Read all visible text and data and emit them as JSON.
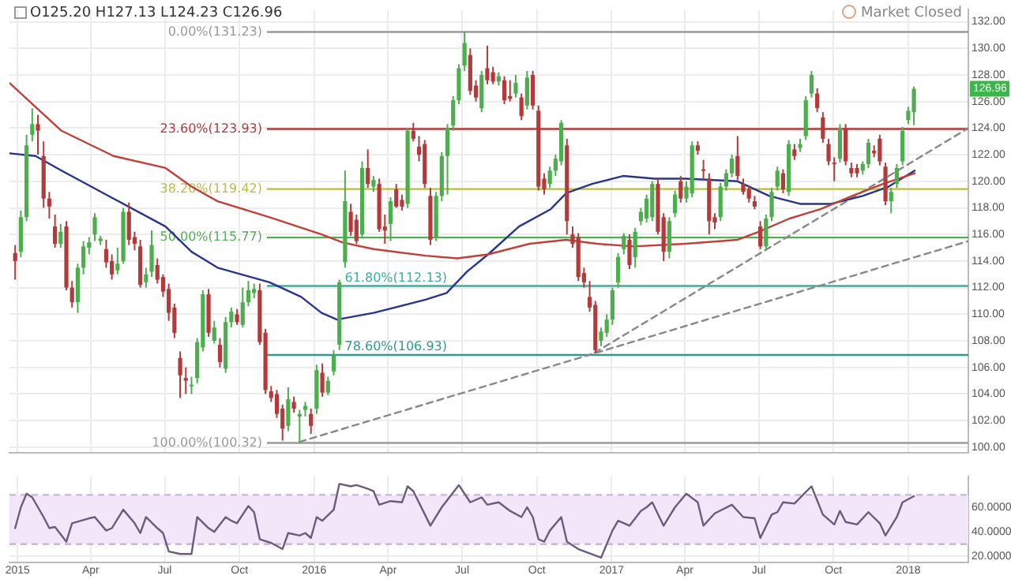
{
  "chart_data": [
    {
      "type": "candlestick",
      "annotations": [
        "O125.20 H127.13 L124.23 C126.96",
        "Market Closed",
        {
          "text": "126.96",
          "y": 126.96
        }
      ],
      "x": [
        "2014-12-29",
        "2015-01-05",
        "2015-01-12",
        "2015-01-19",
        "2015-01-26",
        "2015-02-02",
        "2015-02-09",
        "2015-02-16",
        "2015-02-23",
        "2015-03-02",
        "2015-03-09",
        "2015-03-16",
        "2015-03-23",
        "2015-03-30",
        "2015-04-06",
        "2015-04-13",
        "2015-04-20",
        "2015-04-27",
        "2015-05-04",
        "2015-05-11",
        "2015-05-18",
        "2015-05-25",
        "2015-06-01",
        "2015-06-08",
        "2015-06-15",
        "2015-06-22",
        "2015-06-29",
        "2015-07-06",
        "2015-07-13",
        "2015-07-20",
        "2015-07-27",
        "2015-08-03",
        "2015-08-10",
        "2015-08-17",
        "2015-08-24",
        "2015-08-31",
        "2015-09-07",
        "2015-09-14",
        "2015-09-21",
        "2015-09-28",
        "2015-10-05",
        "2015-10-12",
        "2015-10-19",
        "2015-10-26",
        "2015-11-02",
        "2015-11-09",
        "2015-11-16",
        "2015-11-23",
        "2015-11-30",
        "2015-12-07",
        "2015-12-14",
        "2015-12-21",
        "2015-12-28",
        "2016-01-04",
        "2016-01-11",
        "2016-01-18",
        "2016-01-25",
        "2016-02-01",
        "2016-02-08",
        "2016-02-15",
        "2016-02-22",
        "2016-02-29",
        "2016-03-07",
        "2016-03-14",
        "2016-03-21",
        "2016-03-28",
        "2016-04-04",
        "2016-04-11",
        "2016-04-18",
        "2016-04-25",
        "2016-05-02",
        "2016-05-09",
        "2016-05-16",
        "2016-05-23",
        "2016-05-30",
        "2016-06-06",
        "2016-06-13",
        "2016-06-20",
        "2016-06-27",
        "2016-07-04",
        "2016-07-11",
        "2016-07-18",
        "2016-07-25",
        "2016-08-01",
        "2016-08-08",
        "2016-08-15",
        "2016-08-22",
        "2016-08-29",
        "2016-09-05",
        "2016-09-12",
        "2016-09-19",
        "2016-09-26",
        "2016-10-03",
        "2016-10-10",
        "2016-10-17",
        "2016-10-24",
        "2016-10-31",
        "2016-11-07",
        "2016-11-14",
        "2016-11-21",
        "2016-11-28",
        "2016-12-05",
        "2016-12-12",
        "2016-12-19",
        "2016-12-26",
        "2017-01-02",
        "2017-01-09",
        "2017-01-16",
        "2017-01-23",
        "2017-01-30",
        "2017-02-06",
        "2017-02-13",
        "2017-02-20",
        "2017-02-27",
        "2017-03-06",
        "2017-03-13",
        "2017-03-20",
        "2017-03-27",
        "2017-04-03",
        "2017-04-10",
        "2017-04-17",
        "2017-04-24",
        "2017-05-01",
        "2017-05-08",
        "2017-05-15",
        "2017-05-22",
        "2017-05-29",
        "2017-06-05",
        "2017-06-12",
        "2017-06-19",
        "2017-06-26",
        "2017-07-03",
        "2017-07-10",
        "2017-07-17",
        "2017-07-24",
        "2017-07-31",
        "2017-08-07",
        "2017-08-14",
        "2017-08-21",
        "2017-08-28",
        "2017-09-04",
        "2017-09-11",
        "2017-09-18",
        "2017-09-25",
        "2017-10-02",
        "2017-10-09",
        "2017-10-16",
        "2017-10-23",
        "2017-10-30",
        "2017-11-06",
        "2017-11-13",
        "2017-11-20",
        "2017-11-27",
        "2017-12-04",
        "2017-12-11",
        "2017-12-18",
        "2017-12-25",
        "2018-01-01",
        "2018-01-08"
      ],
      "ohlc": [
        [
          114.6,
          115.2,
          112.6,
          114.0
        ],
        [
          114.7,
          117.8,
          114.3,
          117.3
        ],
        [
          117.3,
          123.5,
          117.0,
          122.7
        ],
        [
          123.5,
          125.5,
          123.0,
          124.3
        ],
        [
          124.3,
          125.0,
          122.0,
          123.8
        ],
        [
          121.9,
          123.0,
          118.0,
          118.7
        ],
        [
          118.7,
          119.2,
          117.2,
          118.1
        ],
        [
          116.6,
          117.5,
          115.0,
          115.3
        ],
        [
          115.3,
          116.8,
          115.0,
          116.2
        ],
        [
          116.6,
          117.0,
          111.8,
          112.0
        ],
        [
          112.0,
          112.5,
          110.5,
          110.9
        ],
        [
          110.9,
          113.8,
          110.1,
          113.5
        ],
        [
          113.5,
          115.5,
          113.0,
          115.1
        ],
        [
          115.0,
          115.8,
          114.5,
          115.4
        ],
        [
          116.0,
          117.6,
          115.5,
          117.3
        ],
        [
          115.5,
          115.9,
          115.2,
          115.7
        ],
        [
          114.9,
          115.6,
          113.5,
          113.9
        ],
        [
          114.0,
          114.5,
          112.6,
          113.0
        ],
        [
          113.3,
          115.0,
          113.0,
          113.8
        ],
        [
          114.0,
          118.0,
          113.8,
          117.7
        ],
        [
          117.7,
          118.4,
          115.2,
          115.6
        ],
        [
          115.8,
          116.2,
          114.8,
          115.3
        ],
        [
          115.1,
          115.6,
          112.0,
          112.2
        ],
        [
          112.4,
          113.5,
          112.0,
          113.0
        ],
        [
          113.2,
          116.3,
          112.8,
          115.2
        ],
        [
          113.7,
          114.2,
          112.3,
          112.6
        ],
        [
          112.8,
          113.0,
          111.3,
          111.7
        ],
        [
          111.9,
          112.3,
          109.5,
          110.1
        ],
        [
          110.5,
          110.8,
          108.2,
          108.6
        ],
        [
          106.7,
          107.2,
          103.7,
          105.4
        ],
        [
          105.2,
          106.0,
          104.0,
          105.0
        ],
        [
          104.6,
          105.3,
          104.0,
          104.7
        ],
        [
          105.2,
          108.2,
          104.8,
          107.9
        ],
        [
          107.5,
          111.8,
          107.2,
          111.5
        ],
        [
          111.5,
          111.9,
          108.3,
          108.6
        ],
        [
          108.0,
          109.5,
          107.8,
          109.0
        ],
        [
          107.7,
          108.2,
          106.0,
          106.4
        ],
        [
          105.9,
          109.8,
          105.6,
          109.4
        ],
        [
          109.4,
          110.5,
          109.0,
          110.2
        ],
        [
          110.0,
          110.4,
          109.2,
          109.4
        ],
        [
          109.2,
          112.0,
          109.0,
          110.9
        ],
        [
          110.9,
          112.5,
          110.6,
          111.8
        ],
        [
          111.6,
          112.3,
          111.2,
          111.9
        ],
        [
          111.8,
          112.3,
          107.7,
          107.9
        ],
        [
          108.6,
          108.9,
          104.0,
          104.3
        ],
        [
          104.2,
          104.6,
          103.4,
          103.7
        ],
        [
          104.0,
          104.3,
          102.2,
          102.5
        ],
        [
          102.9,
          103.2,
          100.5,
          101.4
        ],
        [
          101.6,
          104.5,
          101.2,
          103.6
        ],
        [
          103.4,
          103.8,
          102.6,
          102.9
        ],
        [
          102.3,
          102.8,
          100.32,
          102.5
        ],
        [
          102.8,
          103.4,
          102.3,
          103.1
        ],
        [
          102.5,
          102.9,
          101.0,
          101.6
        ],
        [
          102.9,
          106.2,
          102.5,
          105.8
        ],
        [
          105.6,
          106.3,
          103.8,
          104.1
        ],
        [
          104.1,
          105.3,
          103.9,
          105.0
        ],
        [
          105.7,
          107.3,
          105.4,
          106.9
        ],
        [
          107.7,
          112.6,
          107.3,
          112.4
        ],
        [
          113.9,
          120.8,
          113.5,
          118.5
        ],
        [
          117.7,
          118.3,
          115.9,
          116.2
        ],
        [
          117.1,
          117.5,
          115.3,
          115.5
        ],
        [
          116.0,
          121.5,
          115.7,
          121.0
        ],
        [
          121.0,
          122.4,
          119.5,
          119.8
        ],
        [
          119.6,
          120.4,
          119.2,
          120.1
        ],
        [
          119.8,
          120.2,
          116.2,
          116.4
        ],
        [
          116.6,
          117.5,
          115.3,
          116.3
        ],
        [
          116.8,
          118.8,
          115.5,
          118.5
        ],
        [
          119.4,
          119.8,
          118.0,
          118.1
        ],
        [
          118.6,
          119.0,
          117.8,
          118.1
        ],
        [
          118.3,
          124.0,
          118.0,
          123.8
        ],
        [
          123.8,
          124.4,
          123.0,
          123.2
        ],
        [
          122.6,
          123.4,
          121.5,
          122.0
        ],
        [
          122.8,
          123.1,
          119.5,
          119.8
        ],
        [
          118.9,
          119.5,
          115.2,
          115.6
        ],
        [
          115.8,
          119.2,
          115.5,
          118.9
        ],
        [
          118.9,
          122.2,
          118.5,
          121.9
        ],
        [
          121.9,
          124.3,
          119.0,
          124.0
        ],
        [
          124.2,
          126.4,
          123.8,
          126.1
        ],
        [
          126.1,
          128.8,
          125.8,
          128.5
        ],
        [
          128.7,
          131.23,
          128.3,
          130.4
        ],
        [
          129.5,
          130.0,
          126.5,
          126.8
        ],
        [
          127.2,
          127.6,
          126.0,
          126.3
        ],
        [
          125.5,
          128.3,
          125.2,
          128.0
        ],
        [
          128.5,
          130.2,
          127.3,
          127.6
        ],
        [
          128.2,
          128.6,
          127.3,
          127.5
        ],
        [
          127.5,
          128.2,
          127.2,
          127.9
        ],
        [
          127.6,
          127.9,
          125.8,
          126.1
        ],
        [
          126.4,
          127.6,
          126.0,
          126.2
        ],
        [
          126.6,
          128.0,
          126.3,
          127.4
        ],
        [
          126.3,
          126.6,
          124.6,
          124.9
        ],
        [
          125.7,
          128.3,
          125.4,
          127.8
        ],
        [
          128.0,
          128.3,
          125.4,
          125.7
        ],
        [
          125.3,
          125.7,
          119.3,
          119.6
        ],
        [
          120.2,
          120.6,
          119.0,
          119.4
        ],
        [
          119.8,
          121.1,
          119.5,
          120.8
        ],
        [
          120.8,
          122.0,
          120.4,
          121.7
        ],
        [
          121.5,
          124.6,
          121.2,
          124.4
        ],
        [
          122.7,
          123.2,
          116.0,
          117.0
        ],
        [
          116.0,
          116.6,
          115.0,
          115.3
        ],
        [
          115.8,
          116.1,
          112.5,
          112.8
        ],
        [
          113.1,
          113.5,
          112.0,
          112.4
        ],
        [
          111.3,
          112.5,
          110.2,
          110.5
        ],
        [
          110.7,
          111.0,
          107.1,
          107.3
        ],
        [
          108.0,
          109.0,
          107.6,
          108.7
        ],
        [
          108.6,
          110.0,
          108.3,
          109.6
        ],
        [
          109.6,
          112.0,
          109.2,
          111.8
        ],
        [
          112.4,
          114.6,
          112.0,
          114.3
        ],
        [
          114.9,
          116.1,
          114.5,
          115.9
        ],
        [
          115.6,
          116.0,
          113.4,
          113.7
        ],
        [
          114.3,
          116.5,
          113.5,
          116.2
        ],
        [
          117.0,
          118.0,
          116.7,
          117.7
        ],
        [
          117.2,
          119.0,
          116.9,
          118.7
        ],
        [
          117.3,
          120.0,
          117.0,
          119.8
        ],
        [
          119.8,
          120.2,
          116.0,
          116.2
        ],
        [
          117.3,
          117.6,
          114.0,
          114.7
        ],
        [
          114.7,
          117.3,
          114.2,
          117.0
        ],
        [
          117.6,
          119.3,
          117.3,
          119.0
        ],
        [
          120.0,
          120.4,
          118.4,
          118.7
        ],
        [
          118.7,
          120.0,
          118.4,
          119.6
        ],
        [
          119.1,
          123.0,
          118.8,
          122.7
        ],
        [
          122.7,
          123.0,
          122.0,
          122.3
        ],
        [
          120.9,
          121.6,
          120.1,
          120.8
        ],
        [
          120.2,
          120.6,
          116.0,
          117.0
        ],
        [
          117.3,
          117.6,
          116.4,
          116.9
        ],
        [
          117.3,
          119.9,
          117.0,
          119.6
        ],
        [
          119.6,
          120.9,
          119.3,
          120.6
        ],
        [
          120.6,
          122.0,
          120.3,
          121.7
        ],
        [
          121.9,
          123.4,
          120.1,
          120.4
        ],
        [
          119.8,
          120.2,
          119.0,
          119.2
        ],
        [
          119.4,
          119.7,
          118.4,
          118.7
        ],
        [
          118.5,
          118.9,
          117.9,
          118.1
        ],
        [
          116.6,
          117.0,
          114.9,
          115.1
        ],
        [
          115.1,
          117.5,
          114.8,
          117.2
        ],
        [
          117.3,
          119.5,
          117.0,
          119.2
        ],
        [
          119.6,
          121.1,
          119.3,
          120.8
        ],
        [
          120.6,
          120.9,
          119.1,
          119.4
        ],
        [
          119.2,
          123.1,
          118.9,
          122.8
        ],
        [
          122.4,
          122.8,
          121.6,
          121.9
        ],
        [
          122.5,
          123.2,
          122.2,
          122.8
        ],
        [
          123.4,
          126.4,
          123.1,
          126.1
        ],
        [
          126.6,
          128.3,
          126.3,
          128.0
        ],
        [
          126.6,
          127.0,
          125.2,
          125.5
        ],
        [
          124.8,
          125.2,
          122.9,
          123.2
        ],
        [
          122.8,
          123.2,
          121.2,
          121.5
        ],
        [
          121.4,
          121.8,
          120.0,
          121.3
        ],
        [
          121.7,
          124.3,
          121.4,
          124.0
        ],
        [
          124.0,
          124.3,
          121.2,
          121.5
        ],
        [
          121.0,
          121.4,
          120.3,
          120.6
        ],
        [
          121.0,
          121.3,
          120.3,
          120.6
        ],
        [
          120.8,
          121.5,
          120.5,
          121.3
        ],
        [
          121.3,
          123.2,
          121.0,
          122.9
        ],
        [
          122.3,
          122.7,
          121.8,
          122.1
        ],
        [
          123.2,
          123.5,
          121.2,
          121.5
        ],
        [
          121.1,
          121.4,
          118.2,
          118.5
        ],
        [
          118.5,
          119.5,
          117.6,
          119.2
        ],
        [
          119.8,
          121.3,
          119.5,
          121.0
        ],
        [
          121.5,
          124.1,
          121.2,
          123.8
        ],
        [
          124.6,
          125.6,
          124.3,
          125.3
        ],
        [
          125.2,
          127.13,
          124.23,
          126.96
        ]
      ],
      "series": [
        {
          "type": "line",
          "color": "#c0403a",
          "x": [
            "2014-12-22",
            "2015-02-24",
            "2015-04-29",
            "2015-07-02",
            "2015-08-03",
            "2015-09-04",
            "2015-11-07",
            "2016-01-10",
            "2016-02-05",
            "2016-03-14",
            "2016-05-17",
            "2016-06-25",
            "2016-08-02",
            "2016-09-22",
            "2016-11-06",
            "2016-12-14",
            "2017-01-28",
            "2017-04-02",
            "2017-06-05",
            "2017-07-01",
            "2017-08-08",
            "2017-09-15",
            "2017-10-24",
            "2017-12-01",
            "2018-01-09"
          ],
          "values": [
            127.4,
            123.8,
            121.9,
            121.0,
            119.6,
            118.5,
            117.3,
            116.0,
            115.4,
            114.9,
            114.4,
            114.2,
            114.5,
            115.3,
            115.6,
            115.3,
            115.1,
            115.3,
            115.6,
            116.2,
            117.2,
            117.9,
            118.9,
            119.8,
            120.6
          ]
        },
        {
          "type": "line",
          "color": "#28368a",
          "x": [
            "2014-12-22",
            "2015-01-23",
            "2015-02-24",
            "2015-04-29",
            "2015-07-02",
            "2015-08-03",
            "2015-09-04",
            "2015-11-07",
            "2015-12-16",
            "2016-01-10",
            "2016-01-29",
            "2016-03-14",
            "2016-05-17",
            "2016-06-12",
            "2016-07-07",
            "2016-08-02",
            "2016-09-09",
            "2016-10-18",
            "2016-11-06",
            "2016-12-08",
            "2017-01-15",
            "2017-02-23",
            "2017-04-02",
            "2017-06-05",
            "2017-07-14",
            "2017-08-21",
            "2017-09-28",
            "2017-11-06",
            "2017-12-08",
            "2018-01-09"
          ],
          "values": [
            122.1,
            121.9,
            120.8,
            118.7,
            116.6,
            114.7,
            113.5,
            112.4,
            111.3,
            110.1,
            109.6,
            110.1,
            111.1,
            111.6,
            113.2,
            114.5,
            116.6,
            117.9,
            119.1,
            119.8,
            120.4,
            120.2,
            120.2,
            120.0,
            118.9,
            118.3,
            118.3,
            118.9,
            119.6,
            120.8
          ]
        },
        {
          "type": "line",
          "color": "#888888",
          "line_style": "dashed",
          "x": [
            "2015-12-14",
            "2018-03-16"
          ],
          "values": [
            100.4,
            115.5
          ]
        },
        {
          "type": "line",
          "color": "#888888",
          "line_style": "dashed",
          "x": [
            "2016-12-11",
            "2018-03-16"
          ],
          "values": [
            107.1,
            124.0
          ]
        }
      ],
      "ref_lines": [
        {
          "axis": "y",
          "value": 131.23,
          "label": "0.00%(131.23)",
          "color": "#9a9a9a"
        },
        {
          "axis": "y",
          "value": 123.93,
          "label": "23.60%(123.93)",
          "color": "#b23b3b"
        },
        {
          "axis": "y",
          "value": 119.42,
          "label": "38.20%(119.42)",
          "color": "#bdbd45"
        },
        {
          "axis": "y",
          "value": 115.77,
          "label": "50.00%(115.77)",
          "color": "#5aab5a"
        },
        {
          "axis": "y",
          "value": 112.13,
          "label": "61.80%(112.13)",
          "color": "#3aaea0"
        },
        {
          "axis": "y",
          "value": 106.93,
          "label": "78.60%(106.93)",
          "color": "#2e9b8c"
        },
        {
          "axis": "y",
          "value": 100.32,
          "label": "100.00%(100.32)",
          "color": "#9a9a9a"
        }
      ],
      "xlim": [
        "2014-12-22",
        "2018-03-16"
      ],
      "xticks": [
        {
          "value": "2015-01-01",
          "label": null
        },
        {
          "value": "2015-04-01",
          "label": null
        },
        {
          "value": "2015-07-01",
          "label": null
        },
        {
          "value": "2015-10-01",
          "label": null
        },
        {
          "value": "2016-01-01",
          "label": null
        },
        {
          "value": "2016-04-01",
          "label": null
        },
        {
          "value": "2016-07-01",
          "label": null
        },
        {
          "value": "2016-10-01",
          "label": null
        },
        {
          "value": "2017-01-01",
          "label": null
        },
        {
          "value": "2017-04-01",
          "label": null
        },
        {
          "value": "2017-07-01",
          "label": null
        },
        {
          "value": "2017-10-01",
          "label": null
        },
        {
          "value": "2018-01-01",
          "label": null
        }
      ],
      "ylim": [
        99.6,
        132.9
      ],
      "yticks": [
        {
          "value": 100,
          "label": "100.00"
        },
        {
          "value": 102,
          "label": "102.00"
        },
        {
          "value": 104,
          "label": "104.00"
        },
        {
          "value": 106,
          "label": "106.00"
        },
        {
          "value": 108,
          "label": "108.00"
        },
        {
          "value": 110,
          "label": "110.00"
        },
        {
          "value": 112,
          "label": "112.00"
        },
        {
          "value": 114,
          "label": "114.00"
        },
        {
          "value": 116,
          "label": "116.00"
        },
        {
          "value": 118,
          "label": "118.00"
        },
        {
          "value": 120,
          "label": "120.00"
        },
        {
          "value": 122,
          "label": "122.00"
        },
        {
          "value": 124,
          "label": "124.00"
        },
        {
          "value": 126,
          "label": "126.00"
        },
        {
          "value": 128,
          "label": "128.00"
        },
        {
          "value": 130,
          "label": "130.00"
        },
        {
          "value": 132,
          "label": "132.00"
        }
      ],
      "tick_labels": "y",
      "grid": true,
      "legend": false
    },
    {
      "type": "line",
      "x": [
        "2014-12-29",
        "2015-01-05",
        "2015-01-12",
        "2015-01-19",
        "2015-02-02",
        "2015-02-09",
        "2015-02-16",
        "2015-03-02",
        "2015-03-09",
        "2015-03-30",
        "2015-04-06",
        "2015-04-20",
        "2015-04-27",
        "2015-05-11",
        "2015-05-25",
        "2015-06-01",
        "2015-06-08",
        "2015-06-22",
        "2015-06-29",
        "2015-07-06",
        "2015-07-20",
        "2015-08-03",
        "2015-08-10",
        "2015-08-24",
        "2015-08-31",
        "2015-09-14",
        "2015-09-21",
        "2015-09-28",
        "2015-10-12",
        "2015-10-19",
        "2015-10-26",
        "2015-11-09",
        "2015-11-23",
        "2015-11-30",
        "2015-12-14",
        "2015-12-21",
        "2015-12-28",
        "2016-01-04",
        "2016-01-11",
        "2016-01-25",
        "2016-02-01",
        "2016-02-15",
        "2016-02-22",
        "2016-03-07",
        "2016-03-14",
        "2016-03-21",
        "2016-04-04",
        "2016-04-18",
        "2016-04-25",
        "2016-05-02",
        "2016-05-23",
        "2016-06-06",
        "2016-06-27",
        "2016-07-11",
        "2016-07-25",
        "2016-08-01",
        "2016-08-15",
        "2016-08-29",
        "2016-09-12",
        "2016-09-19",
        "2016-09-26",
        "2016-10-03",
        "2016-10-10",
        "2016-10-17",
        "2016-10-31",
        "2016-11-07",
        "2016-11-21",
        "2016-12-19",
        "2017-01-02",
        "2017-01-09",
        "2017-01-23",
        "2017-02-06",
        "2017-02-13",
        "2017-02-20",
        "2017-03-06",
        "2017-03-20",
        "2017-04-03",
        "2017-04-17",
        "2017-04-24",
        "2017-05-08",
        "2017-05-29",
        "2017-06-12",
        "2017-06-26",
        "2017-07-03",
        "2017-07-17",
        "2017-07-24",
        "2017-07-31",
        "2017-08-14",
        "2017-09-04",
        "2017-09-18",
        "2017-10-02",
        "2017-10-09",
        "2017-10-16",
        "2017-10-30",
        "2017-11-13",
        "2017-11-27",
        "2017-12-04",
        "2017-12-18",
        "2017-12-25",
        "2018-01-08"
      ],
      "series": [
        {
          "color": "#6e5a7e",
          "values": [
            43,
            60,
            71,
            68,
            52,
            43,
            44,
            32,
            47,
            51,
            52,
            41,
            43,
            58,
            47,
            39,
            52,
            43,
            39,
            24,
            22,
            22,
            52,
            43,
            40,
            52,
            49,
            47,
            61,
            56,
            34,
            31,
            26,
            39,
            37,
            39,
            35,
            52,
            49,
            58,
            79,
            77,
            78,
            75,
            73,
            62,
            65,
            64,
            77,
            73,
            45,
            60,
            78,
            64,
            68,
            62,
            64,
            57,
            52,
            60,
            52,
            34,
            32,
            41,
            52,
            32,
            26,
            19,
            41,
            49,
            45,
            57,
            60,
            64,
            45,
            60,
            71,
            64,
            45,
            55,
            62,
            52,
            51,
            35,
            54,
            56,
            64,
            63,
            77,
            54,
            46,
            57,
            48,
            46,
            56,
            47,
            37,
            52,
            64,
            69
          ]
        }
      ],
      "bands": [
        {
          "axis": "y",
          "from": 30,
          "to": 70,
          "color": "#f3e6f8"
        }
      ],
      "ref_lines": [
        {
          "axis": "y",
          "value": 70,
          "color": "#c9b5d6",
          "line_style": "dashed"
        },
        {
          "axis": "y",
          "value": 30,
          "color": "#c9b5d6",
          "line_style": "dashed"
        }
      ],
      "xlim": [
        "2014-12-22",
        "2018-03-16"
      ],
      "xticks": [
        {
          "value": "2015-01-01",
          "label": "2015"
        },
        {
          "value": "2015-04-01",
          "label": "Apr"
        },
        {
          "value": "2015-07-01",
          "label": "Jul"
        },
        {
          "value": "2015-10-01",
          "label": "Oct"
        },
        {
          "value": "2016-01-01",
          "label": "2016"
        },
        {
          "value": "2016-04-01",
          "label": "Apr"
        },
        {
          "value": "2016-07-01",
          "label": "Jul"
        },
        {
          "value": "2016-10-01",
          "label": "Oct"
        },
        {
          "value": "2017-01-01",
          "label": "2017"
        },
        {
          "value": "2017-04-01",
          "label": "Apr"
        },
        {
          "value": "2017-07-01",
          "label": "Jul"
        },
        {
          "value": "2017-10-01",
          "label": "Oct"
        },
        {
          "value": "2018-01-01",
          "label": "2018"
        }
      ],
      "ylim": [
        15,
        85
      ],
      "yticks": [
        {
          "value": 20,
          "label": "20.0000"
        },
        {
          "value": 40,
          "label": "40.0000"
        },
        {
          "value": 60,
          "label": "60.0000"
        }
      ],
      "grid": true,
      "legend": false
    }
  ]
}
